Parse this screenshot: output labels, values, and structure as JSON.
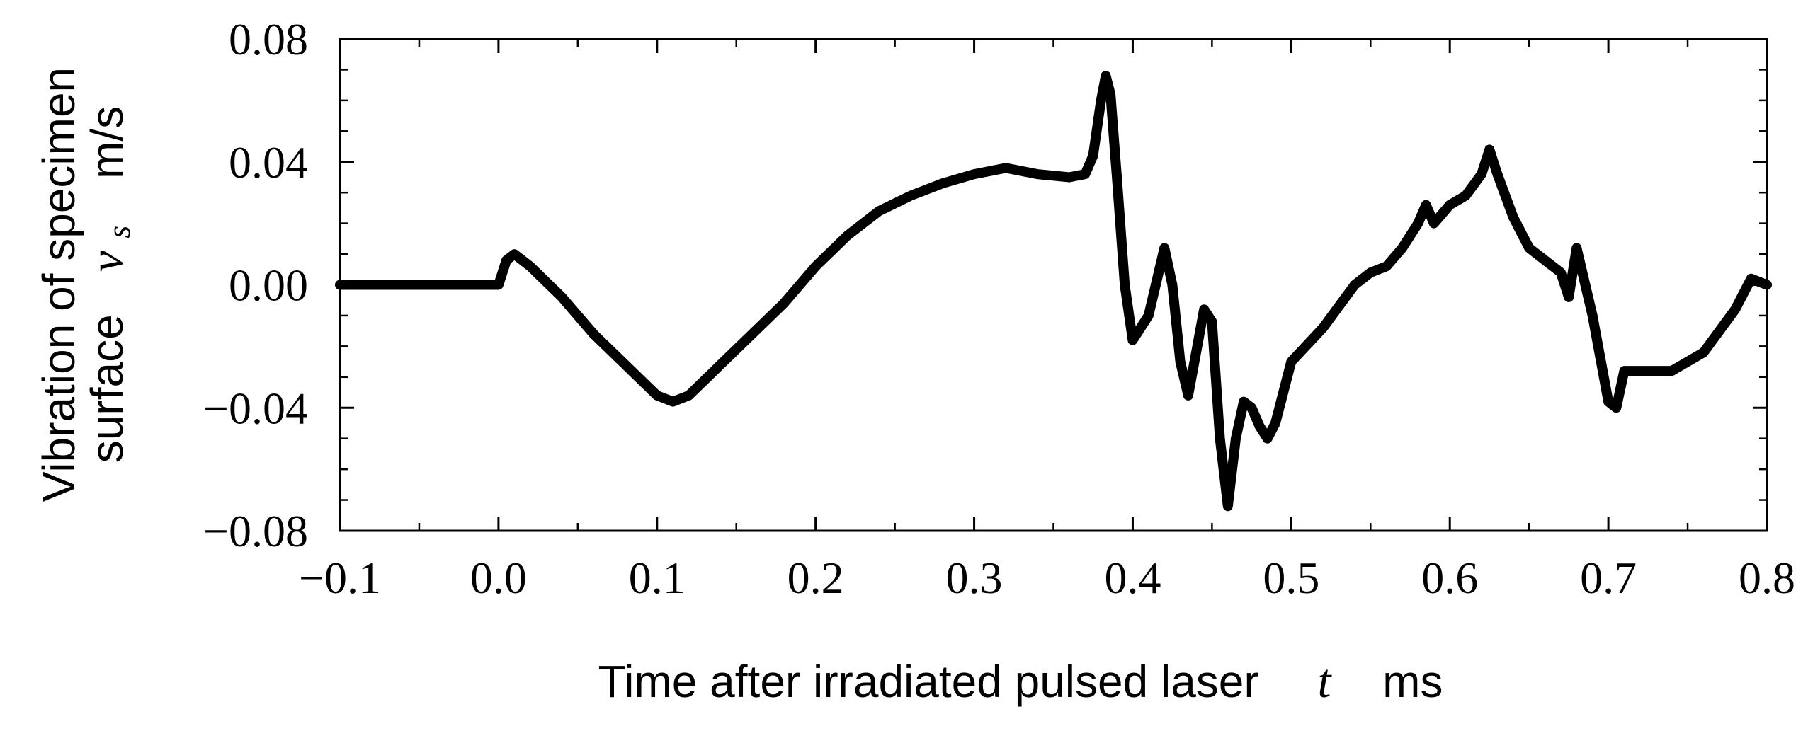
{
  "chart_data": {
    "type": "line",
    "xlabel": {
      "text": "Time after irradiated pulsed laser",
      "symbol": "t",
      "unit": "ms"
    },
    "ylabel": {
      "line1": "Vibration of specimen",
      "line2": "surface",
      "symbol": "v",
      "subscript": "s",
      "unit": "m/s"
    },
    "xlim": [
      -0.1,
      0.8
    ],
    "ylim": [
      -0.08,
      0.08
    ],
    "xticks": [
      -0.1,
      0.0,
      0.1,
      0.2,
      0.3,
      0.4,
      0.5,
      0.6,
      0.7,
      0.8
    ],
    "xtick_labels": [
      "−0.1",
      "0.0",
      "0.1",
      "0.2",
      "0.3",
      "0.4",
      "0.5",
      "0.6",
      "0.7",
      "0.8"
    ],
    "yticks": [
      0.08,
      0.04,
      0.0,
      -0.04,
      -0.08
    ],
    "ytick_labels": [
      "0.08",
      "0.04",
      "0.00",
      "−0.04",
      "−0.08"
    ],
    "x_minor_step": 0.05,
    "y_minor_step": 0.01,
    "grid": false,
    "line_color": "#000000",
    "series": [
      {
        "x": [
          -0.1,
          -0.05,
          0.0,
          0.005,
          0.01,
          0.02,
          0.04,
          0.06,
          0.08,
          0.1,
          0.11,
          0.12,
          0.14,
          0.16,
          0.18,
          0.2,
          0.22,
          0.24,
          0.26,
          0.28,
          0.3,
          0.32,
          0.34,
          0.36,
          0.37,
          0.375,
          0.38,
          0.383,
          0.386,
          0.39,
          0.395,
          0.4,
          0.41,
          0.42,
          0.425,
          0.43,
          0.435,
          0.44,
          0.445,
          0.45,
          0.455,
          0.46,
          0.465,
          0.47,
          0.475,
          0.48,
          0.485,
          0.49,
          0.5,
          0.52,
          0.54,
          0.55,
          0.56,
          0.57,
          0.58,
          0.585,
          0.59,
          0.6,
          0.61,
          0.62,
          0.625,
          0.63,
          0.64,
          0.65,
          0.66,
          0.67,
          0.675,
          0.68,
          0.69,
          0.7,
          0.705,
          0.71,
          0.72,
          0.74,
          0.76,
          0.78,
          0.79,
          0.8
        ],
        "y": [
          0.0,
          0.0,
          0.0,
          0.008,
          0.01,
          0.006,
          -0.004,
          -0.016,
          -0.026,
          -0.036,
          -0.038,
          -0.036,
          -0.026,
          -0.016,
          -0.006,
          0.006,
          0.016,
          0.024,
          0.029,
          0.033,
          0.036,
          0.038,
          0.036,
          0.035,
          0.036,
          0.042,
          0.06,
          0.068,
          0.062,
          0.035,
          0.0,
          -0.018,
          -0.01,
          0.012,
          0.0,
          -0.025,
          -0.036,
          -0.022,
          -0.008,
          -0.012,
          -0.05,
          -0.072,
          -0.05,
          -0.038,
          -0.04,
          -0.046,
          -0.05,
          -0.045,
          -0.025,
          -0.014,
          0.0,
          0.004,
          0.006,
          0.012,
          0.02,
          0.026,
          0.02,
          0.026,
          0.029,
          0.036,
          0.044,
          0.036,
          0.022,
          0.012,
          0.008,
          0.004,
          -0.004,
          0.012,
          -0.01,
          -0.038,
          -0.04,
          -0.028,
          -0.028,
          -0.028,
          -0.022,
          -0.008,
          0.002,
          0.0
        ]
      }
    ]
  }
}
